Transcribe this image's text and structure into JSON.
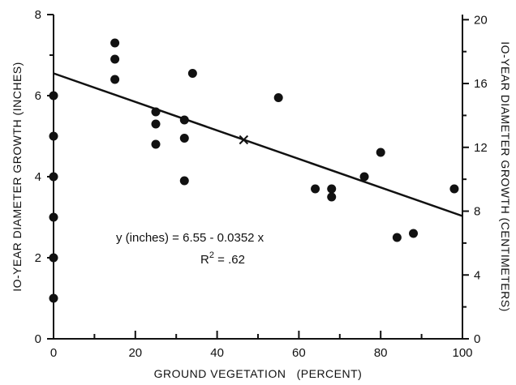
{
  "chart_data": {
    "type": "scatter",
    "title": "",
    "xlabel": "GROUND VEGETATION   (PERCENT)",
    "ylabel": "IO-YEAR DIAMETER GROWTH (INCHES)",
    "y2label": "IO-YEAR DIAMETER GROWTH (CENTIMETERS)",
    "xlim": [
      0,
      100
    ],
    "ylim": [
      0,
      8
    ],
    "y2lim": [
      0,
      20.32
    ],
    "x_ticks": [
      0,
      20,
      40,
      60,
      80,
      100
    ],
    "x_tick_labels": [
      "0",
      "20",
      "40",
      "60",
      "80",
      "100"
    ],
    "x_minor_ticks": [
      10,
      30,
      50,
      70,
      90
    ],
    "y_ticks": [
      0,
      2,
      4,
      6,
      8
    ],
    "y_tick_labels": [
      "0",
      "2",
      "4",
      "6",
      "8"
    ],
    "y_minor_ticks": [
      1,
      3,
      5,
      7
    ],
    "y2_ticks": [
      0,
      4,
      8,
      12,
      16,
      20
    ],
    "y2_tick_labels": [
      "0",
      "4",
      "8",
      "12",
      "16",
      "20"
    ],
    "y2_minor_ticks": [
      2,
      6,
      10,
      14,
      18
    ],
    "grid": false,
    "legend": "none",
    "series": [
      {
        "marker": "filled-circle",
        "x": [
          0,
          0,
          0,
          0,
          0,
          0,
          15,
          15,
          15,
          25,
          25,
          25,
          32,
          32,
          32,
          34,
          55,
          64,
          68,
          68,
          76,
          80,
          84,
          88,
          98
        ],
        "y": [
          6.0,
          5.0,
          4.0,
          3.0,
          2.0,
          1.0,
          7.3,
          6.9,
          6.4,
          5.6,
          5.3,
          4.8,
          5.4,
          4.95,
          3.9,
          6.55,
          5.95,
          3.7,
          3.7,
          3.5,
          4.0,
          4.6,
          2.5,
          2.6,
          3.7
        ]
      }
    ],
    "regression": {
      "intercept": 6.55,
      "slope": -0.0352,
      "x_range": [
        0,
        100
      ],
      "mean_marker": {
        "x": 46.5,
        "y": 4.91,
        "symbol": "cross"
      }
    },
    "annotations": {
      "equation": "y (inches) = 6.55 - 0.0352 x",
      "r2_prefix": "R",
      "r2_sup": "2",
      "r2_value": " = .62"
    }
  }
}
